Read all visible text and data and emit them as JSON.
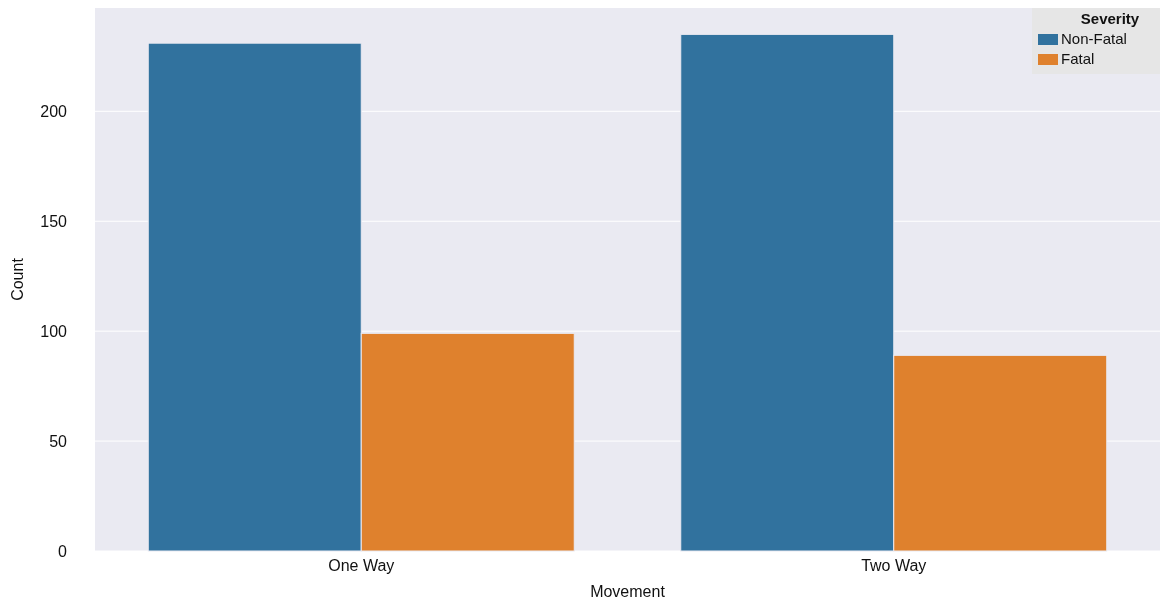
{
  "chart_data": {
    "type": "bar",
    "xlabel": "Movement",
    "ylabel": "Count",
    "legend_title": "Severity",
    "categories": [
      "One Way",
      "Two Way"
    ],
    "series": [
      {
        "name": "Non-Fatal",
        "color": "#31729e",
        "values": [
          231,
          235
        ]
      },
      {
        "name": "Fatal",
        "color": "#df812d",
        "values": [
          99,
          89
        ]
      }
    ],
    "ylim": [
      0,
      247
    ],
    "yticks": [
      0,
      50,
      100,
      150,
      200
    ],
    "grid": "y",
    "legend": "top right"
  }
}
